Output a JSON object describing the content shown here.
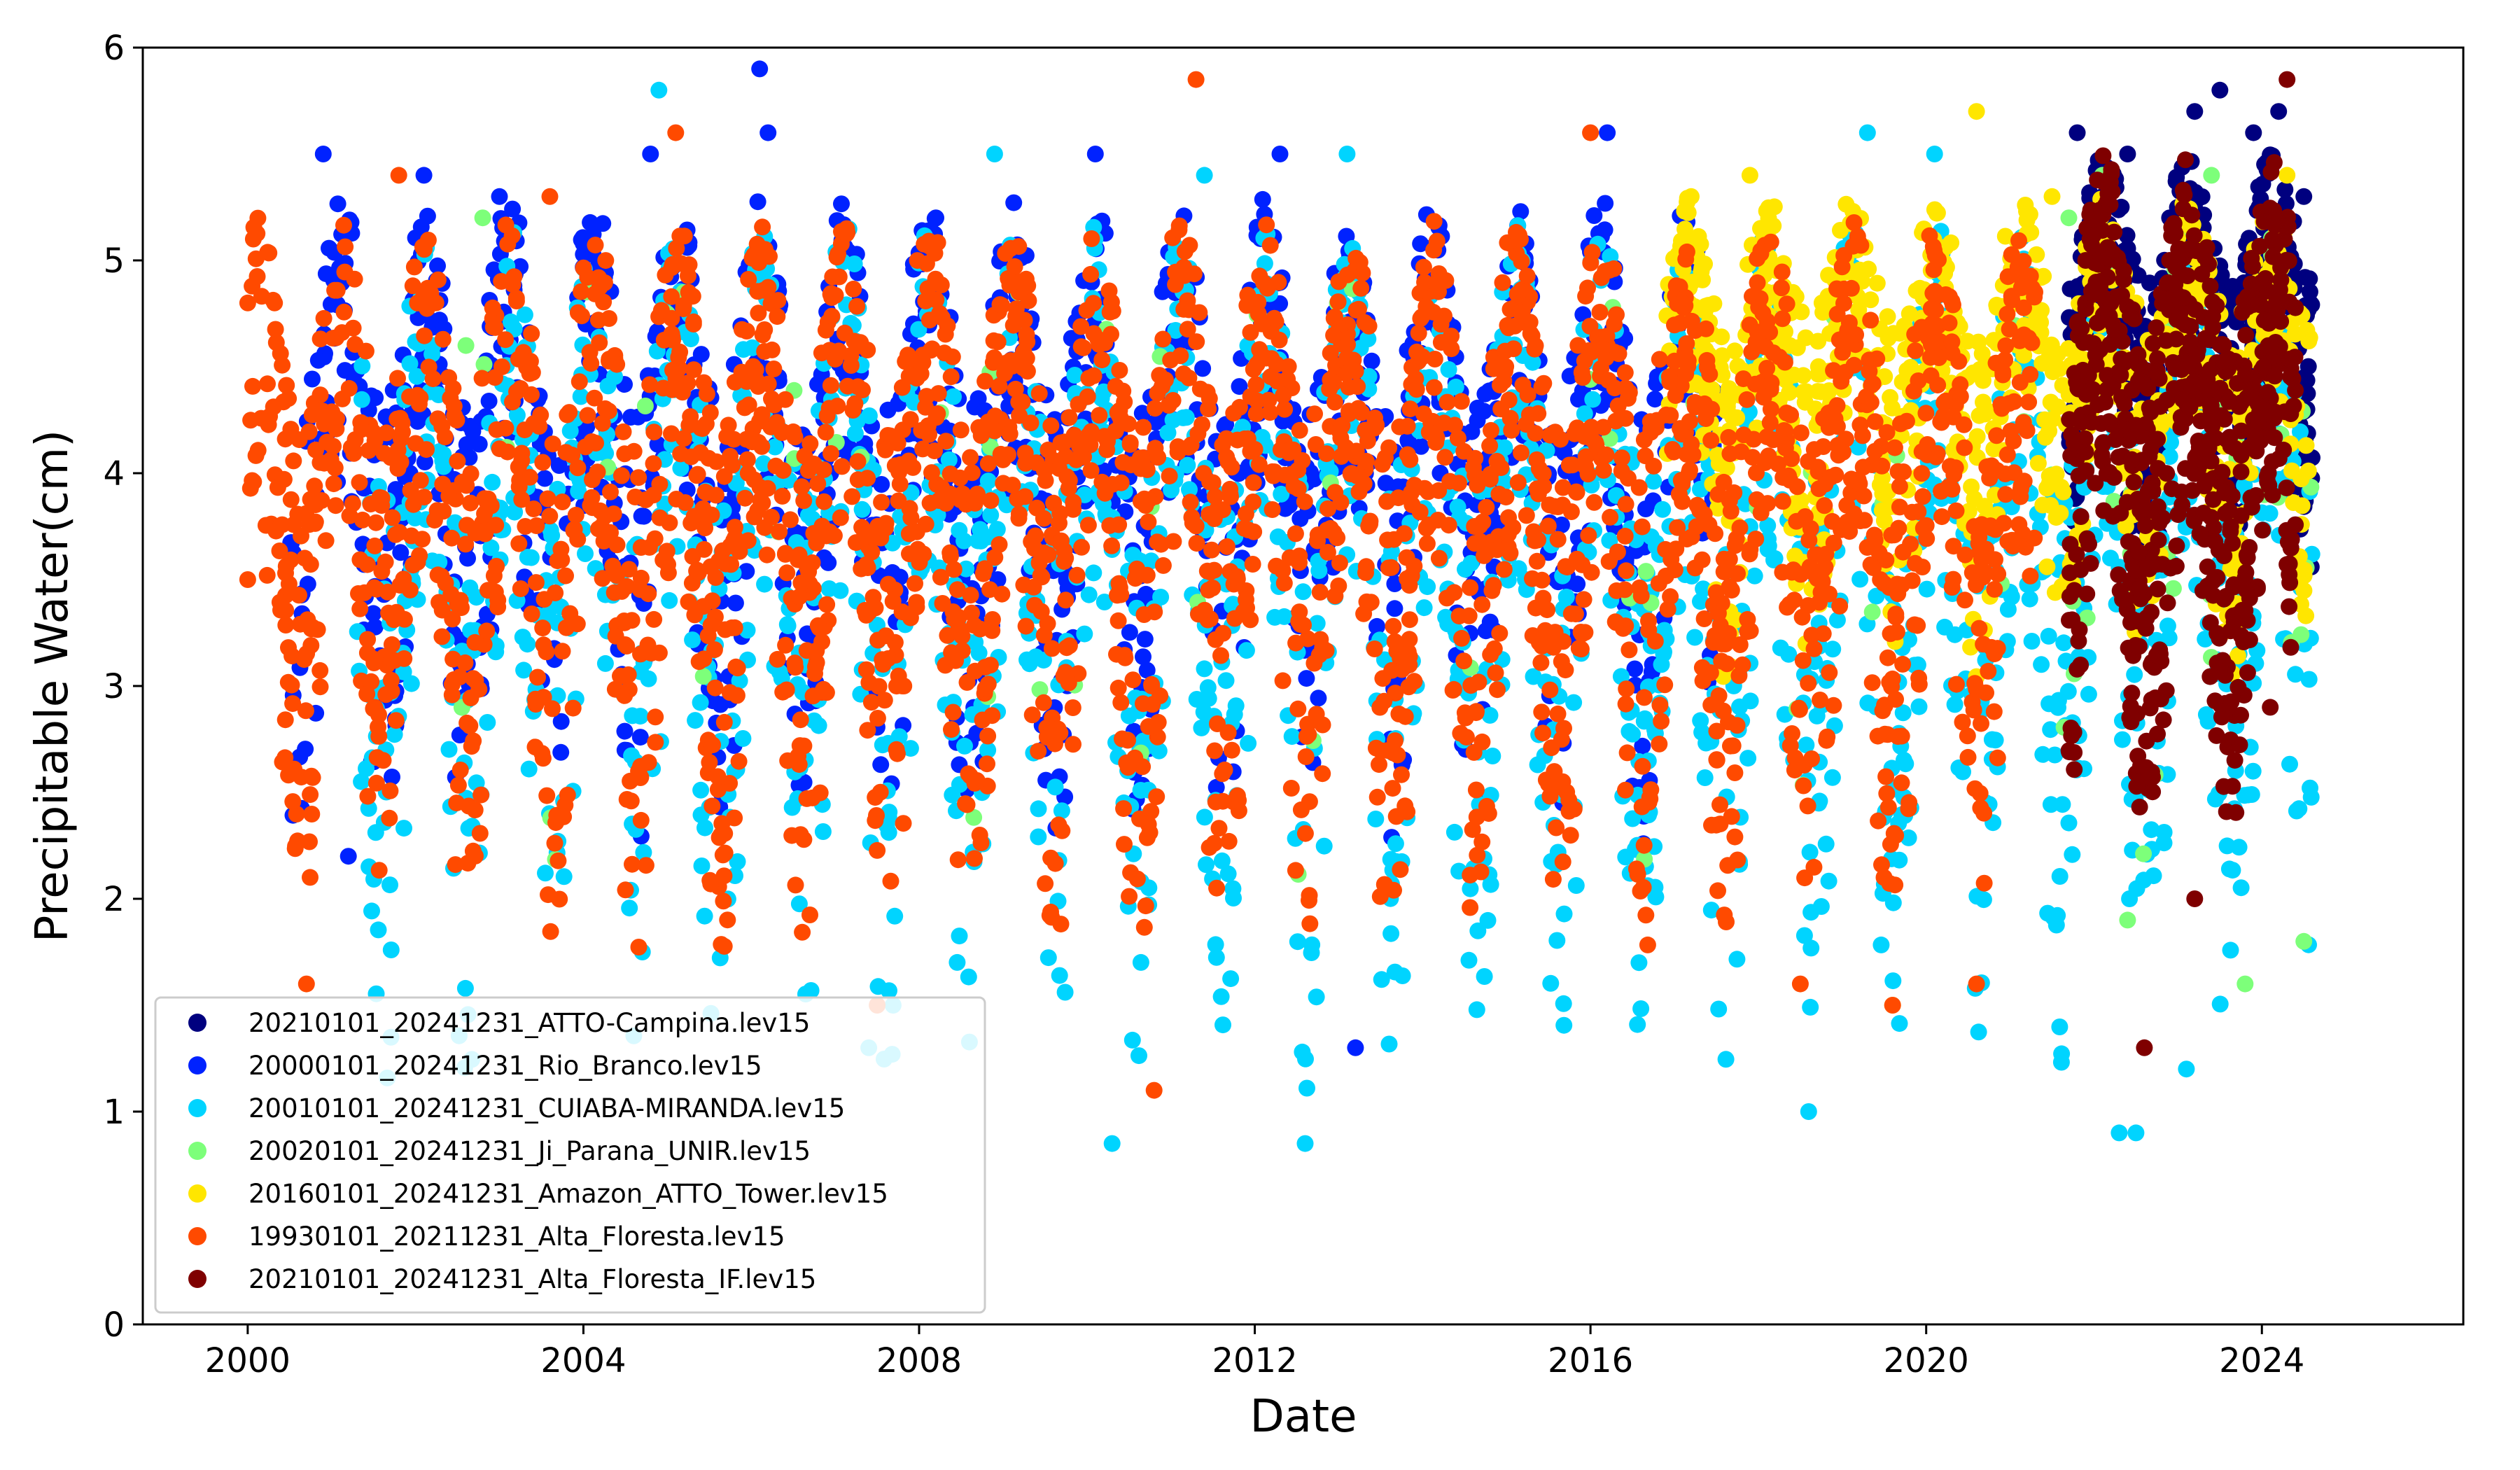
{
  "chart_data": {
    "type": "scatter",
    "title": "",
    "xlabel": "Date",
    "ylabel": "Precipitable Water(cm)",
    "xlim": [
      1998.75,
      2026.4
    ],
    "ylim": [
      0,
      6
    ],
    "x_ticks": [
      "2000",
      "2004",
      "2008",
      "2012",
      "2016",
      "2020",
      "2024"
    ],
    "x_tick_values": [
      2000,
      2004,
      2008,
      2012,
      2016,
      2020,
      2024
    ],
    "y_ticks": [
      "0",
      "1",
      "2",
      "3",
      "4",
      "5",
      "6"
    ],
    "y_tick_values": [
      0,
      1,
      2,
      3,
      4,
      5,
      6
    ],
    "grid": false,
    "legend_position": "bottom-left",
    "series": [
      {
        "name": "20210101_20241231_ATTO-Campina.lev15",
        "color": "#00007f",
        "x_range": [
          2021.7,
          2024.6
        ],
        "data": [
          [
            2021.8,
            5.6
          ],
          [
            2022.1,
            5.3
          ],
          [
            2022.4,
            5.5
          ],
          [
            2022.9,
            5.2
          ],
          [
            2023.2,
            5.7
          ],
          [
            2023.5,
            5.8
          ],
          [
            2023.9,
            5.6
          ],
          [
            2024.2,
            5.7
          ],
          [
            2024.5,
            5.3
          ]
        ]
      },
      {
        "name": "20000101_20241231_Rio_Branco.lev15",
        "color": "#0022ff",
        "x_range": [
          2000.5,
          2017.5
        ],
        "data": [
          [
            2000.9,
            5.5
          ],
          [
            2001.2,
            2.2
          ],
          [
            2002.1,
            5.4
          ],
          [
            2003.0,
            5.3
          ],
          [
            2004.8,
            5.5
          ],
          [
            2006.1,
            5.9
          ],
          [
            2006.2,
            5.6
          ],
          [
            2008.2,
            5.2
          ],
          [
            2010.1,
            5.5
          ],
          [
            2012.3,
            5.5
          ],
          [
            2013.2,
            1.3
          ],
          [
            2016.2,
            5.6
          ]
        ]
      },
      {
        "name": "20010101_20241231_CUIABA-MIRANDA.lev15",
        "color": "#00d4ff",
        "x_range": [
          2001.3,
          2024.6
        ],
        "data": [
          [
            2004.9,
            5.8
          ],
          [
            2007.4,
            1.3
          ],
          [
            2008.9,
            5.5
          ],
          [
            2010.3,
            0.85
          ],
          [
            2011.4,
            5.4
          ],
          [
            2012.6,
            0.85
          ],
          [
            2013.1,
            5.5
          ],
          [
            2018.6,
            1.0
          ],
          [
            2019.3,
            5.6
          ],
          [
            2020.1,
            5.5
          ],
          [
            2022.3,
            0.9
          ],
          [
            2022.5,
            0.9
          ],
          [
            2023.1,
            1.2
          ]
        ]
      },
      {
        "name": "20020101_20241231_Ji_Parana_UNIR.lev15",
        "color": "#7dff7a",
        "x_range": [
          2002.5,
          2024.6
        ],
        "data": [
          [
            2002.8,
            5.2
          ],
          [
            2002.6,
            4.6
          ],
          [
            2021.7,
            5.2
          ],
          [
            2022.1,
            5.4
          ],
          [
            2022.4,
            1.9
          ],
          [
            2023.4,
            5.4
          ],
          [
            2023.8,
            1.6
          ],
          [
            2024.5,
            1.8
          ]
        ]
      },
      {
        "name": "20160101_20241231_Amazon_ATTO_Tower.lev15",
        "color": "#ffe600",
        "x_range": [
          2016.9,
          2024.6
        ],
        "data": [
          [
            2017.2,
            5.3
          ],
          [
            2017.9,
            5.4
          ],
          [
            2019.6,
            1.5
          ],
          [
            2020.6,
            5.7
          ],
          [
            2021.5,
            5.3
          ],
          [
            2022.5,
            4.8
          ],
          [
            2023.0,
            4.5
          ],
          [
            2024.3,
            5.4
          ]
        ]
      },
      {
        "name": "19930101_20211231_Alta_Floresta.lev15",
        "color": "#ff4a00",
        "x_range": [
          2000.0,
          2021.3
        ],
        "data": [
          [
            2000.0,
            4.8
          ],
          [
            2000.0,
            3.5
          ],
          [
            2000.7,
            1.6
          ],
          [
            2001.8,
            5.4
          ],
          [
            2003.6,
            5.3
          ],
          [
            2005.1,
            5.6
          ],
          [
            2007.5,
            1.5
          ],
          [
            2009.2,
            4.9
          ],
          [
            2010.8,
            1.1
          ],
          [
            2011.3,
            5.85
          ],
          [
            2013.0,
            4.9
          ],
          [
            2016.0,
            5.6
          ],
          [
            2018.5,
            1.6
          ],
          [
            2019.6,
            1.5
          ],
          [
            2020.6,
            1.6
          ],
          [
            2021.2,
            4.2
          ]
        ]
      },
      {
        "name": "20210101_20241231_Alta_Floresta_IF.lev15",
        "color": "#7f0000",
        "x_range": [
          2021.7,
          2024.4
        ],
        "data": [
          [
            2021.9,
            5.0
          ],
          [
            2022.2,
            4.8
          ],
          [
            2022.6,
            1.3
          ],
          [
            2022.9,
            5.0
          ],
          [
            2023.2,
            2.0
          ],
          [
            2024.3,
            5.85
          ],
          [
            2024.1,
            2.9
          ]
        ]
      }
    ]
  }
}
